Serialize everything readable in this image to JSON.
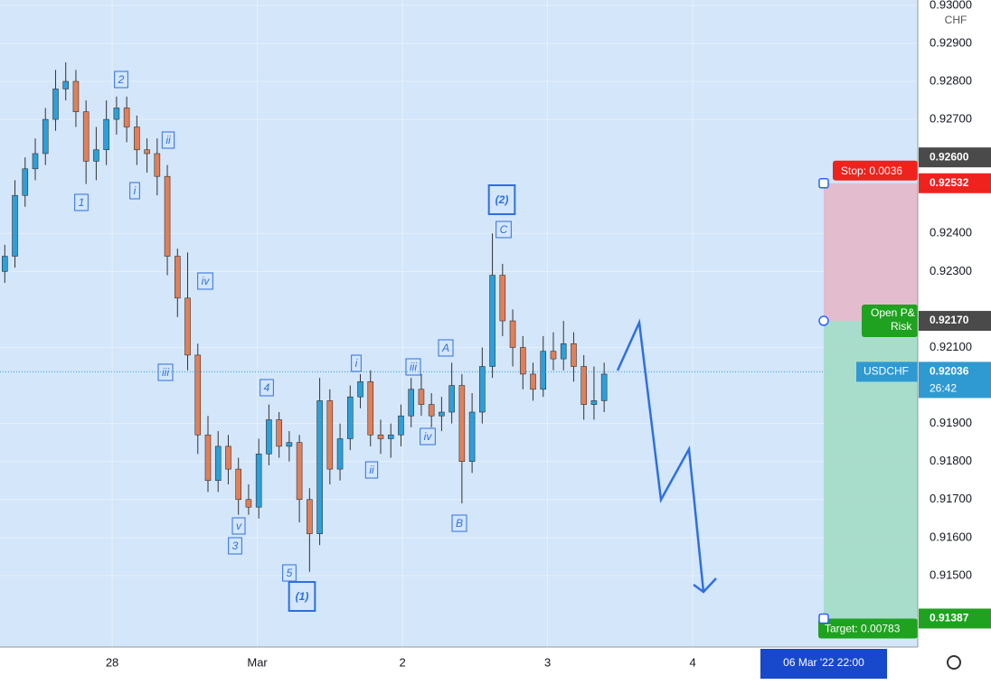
{
  "chart_data": {
    "type": "candlestick",
    "symbol": "USDCHF",
    "currency": "CHF",
    "x": [
      -0.74,
      -0.67,
      -0.6,
      -0.53,
      -0.46,
      -0.39,
      -0.32,
      -0.25,
      -0.18,
      -0.11,
      -0.04,
      0.03,
      0.1,
      0.17,
      0.24,
      0.31,
      0.38,
      0.45,
      0.52,
      0.59,
      0.66,
      0.73,
      0.8,
      0.87,
      0.94,
      1.01,
      1.08,
      1.15,
      1.22,
      1.29,
      1.36,
      1.43,
      1.5,
      1.57,
      1.64,
      1.71,
      1.78,
      1.85,
      1.92,
      1.99,
      2.06,
      2.13,
      2.2,
      2.27,
      2.34,
      2.41,
      2.48,
      2.55,
      2.62,
      2.69,
      2.76,
      2.83,
      2.9,
      2.97,
      3.04,
      3.11,
      3.18,
      3.25,
      3.32,
      3.39
    ],
    "open": [
      0.923,
      0.9234,
      0.925,
      0.9257,
      0.9261,
      0.927,
      0.9278,
      0.928,
      0.9272,
      0.9259,
      0.9262,
      0.927,
      0.9273,
      0.9268,
      0.9262,
      0.9261,
      0.9255,
      0.9234,
      0.9223,
      0.9208,
      0.9187,
      0.9175,
      0.9184,
      0.9178,
      0.917,
      0.9168,
      0.9182,
      0.9191,
      0.9184,
      0.9185,
      0.917,
      0.9161,
      0.9196,
      0.9178,
      0.9186,
      0.9197,
      0.9201,
      0.9187,
      0.9186,
      0.9187,
      0.9192,
      0.9199,
      0.9195,
      0.9192,
      0.9193,
      0.92,
      0.918,
      0.9193,
      0.9205,
      0.9229,
      0.9217,
      0.921,
      0.9203,
      0.9199,
      0.9209,
      0.9207,
      0.9211,
      0.9205,
      0.9195,
      0.9196
    ],
    "high": [
      0.9237,
      0.9254,
      0.926,
      0.9265,
      0.9273,
      0.9283,
      0.9285,
      0.9283,
      0.9275,
      0.9268,
      0.9275,
      0.9276,
      0.9276,
      0.9271,
      0.9265,
      0.9265,
      0.9258,
      0.9236,
      0.9235,
      0.9211,
      0.9192,
      0.9188,
      0.9187,
      0.9181,
      0.9174,
      0.9186,
      0.9195,
      0.9193,
      0.9188,
      0.9187,
      0.9173,
      0.9202,
      0.9199,
      0.919,
      0.92,
      0.9203,
      0.9204,
      0.9191,
      0.919,
      0.9195,
      0.9202,
      0.9203,
      0.9198,
      0.9197,
      0.9206,
      0.9203,
      0.9198,
      0.921,
      0.924,
      0.9232,
      0.922,
      0.9213,
      0.9206,
      0.9213,
      0.9214,
      0.9217,
      0.9214,
      0.9208,
      0.9205,
      0.9206
    ],
    "low": [
      0.9227,
      0.9231,
      0.9247,
      0.9254,
      0.9258,
      0.9267,
      0.9275,
      0.9268,
      0.9253,
      0.9254,
      0.9258,
      0.9266,
      0.9264,
      0.9258,
      0.9256,
      0.925,
      0.9229,
      0.9218,
      0.9204,
      0.9182,
      0.9172,
      0.9172,
      0.9174,
      0.9166,
      0.9166,
      0.9165,
      0.9179,
      0.9181,
      0.918,
      0.9164,
      0.9151,
      0.9158,
      0.9174,
      0.9175,
      0.9183,
      0.9194,
      0.9184,
      0.9182,
      0.9181,
      0.9184,
      0.9189,
      0.9192,
      0.9189,
      0.9188,
      0.919,
      0.9169,
      0.9177,
      0.919,
      0.9202,
      0.9213,
      0.9205,
      0.9199,
      0.9196,
      0.9197,
      0.9204,
      0.9204,
      0.9201,
      0.9191,
      0.9191,
      0.9193
    ],
    "close": [
      0.9234,
      0.925,
      0.9257,
      0.9261,
      0.927,
      0.9278,
      0.928,
      0.9272,
      0.9259,
      0.9262,
      0.927,
      0.9273,
      0.9268,
      0.9262,
      0.9261,
      0.9255,
      0.9234,
      0.9223,
      0.9208,
      0.9187,
      0.9175,
      0.9184,
      0.9178,
      0.917,
      0.9168,
      0.9182,
      0.9191,
      0.9184,
      0.9185,
      0.917,
      0.9161,
      0.9196,
      0.9178,
      0.9186,
      0.9197,
      0.9201,
      0.9187,
      0.9186,
      0.9187,
      0.9192,
      0.9199,
      0.9195,
      0.9192,
      0.9193,
      0.92,
      0.918,
      0.9193,
      0.9205,
      0.9229,
      0.9217,
      0.921,
      0.9203,
      0.9199,
      0.9209,
      0.9207,
      0.9211,
      0.9205,
      0.9195,
      0.9196,
      0.9203
    ],
    "up_color": "#2d9fd9",
    "down_color": "#e0805a",
    "xlim": [
      -0.773,
      5.551
    ],
    "xticks": [
      {
        "value": 0,
        "label": "28"
      },
      {
        "value": 1,
        "label": "Mar"
      },
      {
        "value": 2,
        "label": "2"
      },
      {
        "value": 3,
        "label": "3"
      },
      {
        "value": 4,
        "label": "4"
      }
    ],
    "ylim": [
      0.91312,
      0.93014
    ],
    "yticks": [
      {
        "value": 0.915,
        "label": "0.91500"
      },
      {
        "value": 0.916,
        "label": "0.91600"
      },
      {
        "value": 0.917,
        "label": "0.91700"
      },
      {
        "value": 0.918,
        "label": "0.91800"
      },
      {
        "value": 0.919,
        "label": "0.91900"
      },
      {
        "value": 0.921,
        "label": "0.92100"
      },
      {
        "value": 0.923,
        "label": "0.92300"
      },
      {
        "value": 0.924,
        "label": "0.92400"
      },
      {
        "value": 0.927,
        "label": "0.92700"
      },
      {
        "value": 0.928,
        "label": "0.92800"
      },
      {
        "value": 0.929,
        "label": "0.92900"
      },
      {
        "value": 0.93,
        "label": "0.93000"
      }
    ],
    "last_price": {
      "value": 0.92036,
      "label": "0.92036"
    },
    "countdown": "26:42",
    "crosshair_price": {
      "value": 0.926,
      "label": "0.92600"
    },
    "crosshair_time": "06 Mar '22   22:00",
    "position": {
      "stop": {
        "value": 0.92532,
        "label": "0.92532"
      },
      "entry": {
        "value": 0.9217,
        "label": "0.92170"
      },
      "target": {
        "value": 0.91387,
        "label": "0.91387"
      },
      "stop_text": "Stop: 0.0036",
      "open_text": "Open P&",
      "risk_text": "Risk",
      "target_text": "Target: 0.00783"
    },
    "wave_labels": [
      "2",
      "ii",
      "i",
      "1",
      "iv",
      "iii",
      "4",
      "v",
      "3",
      "5",
      "(1)",
      "i",
      "iii",
      "A",
      "ii",
      "iv",
      "B",
      "(2)",
      "C"
    ]
  }
}
